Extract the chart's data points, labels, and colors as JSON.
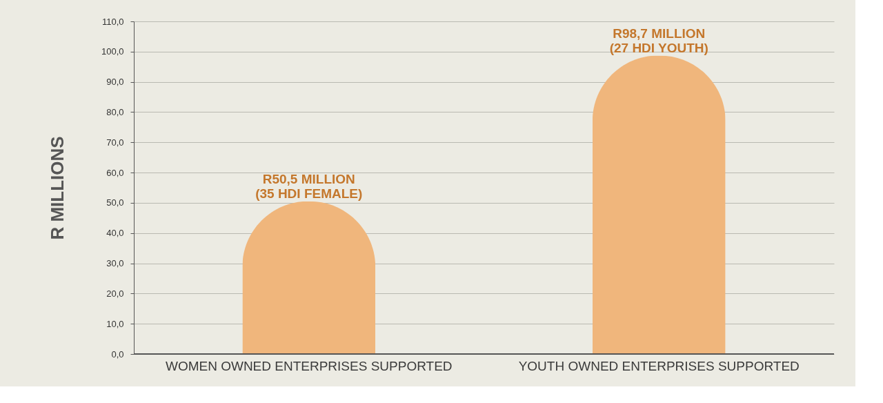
{
  "chart_data": {
    "type": "bar",
    "ylabel": "R MILLIONS",
    "categories": [
      "WOMEN OWNED ENTERPRISES SUPPORTED",
      "YOUTH OWNED ENTERPRISES SUPPORTED"
    ],
    "values": [
      50.5,
      98.7
    ],
    "color": "#f0b67c",
    "value_labels": [
      "R50,5 MILLION\n(35 HDI FEMALE)",
      "R98,7 MILLION\n(27 HDI YOUTH)"
    ],
    "ylim": [
      0,
      110
    ],
    "yticks": [
      {
        "value": 0,
        "label": "0,0"
      },
      {
        "value": 10,
        "label": "10,0"
      },
      {
        "value": 20,
        "label": "20,0"
      },
      {
        "value": 30,
        "label": "30,0"
      },
      {
        "value": 40,
        "label": "40,0"
      },
      {
        "value": 50,
        "label": "50,0"
      },
      {
        "value": 60,
        "label": "60,0"
      },
      {
        "value": 70,
        "label": "70,0"
      },
      {
        "value": 80,
        "label": "80,0"
      },
      {
        "value": 90,
        "label": "90,0"
      },
      {
        "value": 100,
        "label": "100,0"
      },
      {
        "value": 110,
        "label": "110,0"
      }
    ],
    "grid": "y"
  }
}
